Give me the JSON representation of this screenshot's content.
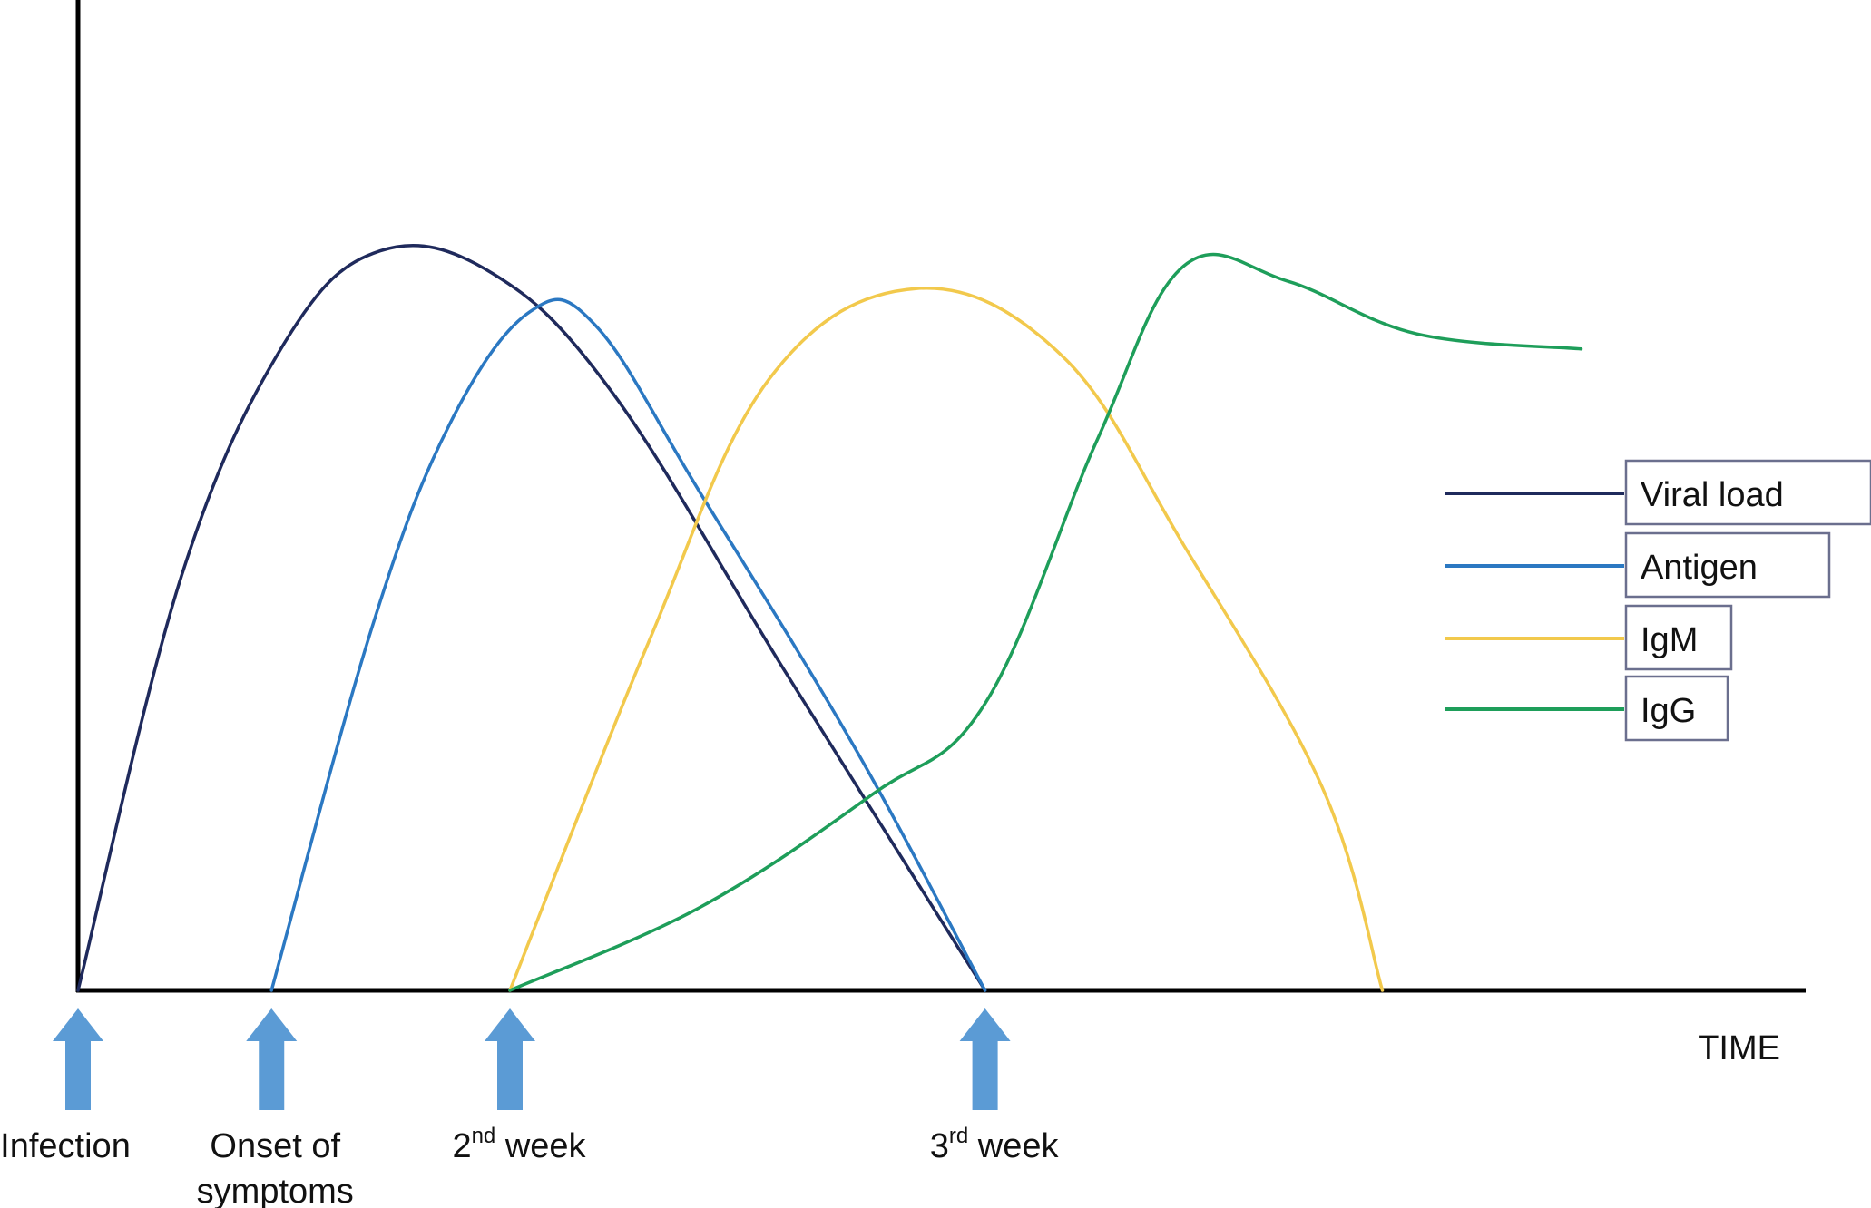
{
  "chart_data": {
    "type": "line",
    "xlabel": "TIME",
    "ylabel": "",
    "title": "",
    "xlim": [
      0,
      1
    ],
    "ylim": [
      0,
      1
    ],
    "grid": false,
    "legend_position": "right",
    "markers": [
      {
        "x": 0.0,
        "lines": [
          "Infection"
        ]
      },
      {
        "x": 0.112,
        "lines": [
          "Onset of",
          "symptoms"
        ]
      },
      {
        "x": 0.25,
        "lines": [
          "2nd week"
        ],
        "base": "2",
        "sup": "nd",
        "rest": " week"
      },
      {
        "x": 0.525,
        "lines": [
          "3rd week"
        ],
        "base": "3",
        "sup": "rd",
        "rest": " week"
      }
    ],
    "series": [
      {
        "name": "Viral load",
        "color": "#1f2a5c",
        "points": [
          [
            0.0,
            0.0
          ],
          [
            0.06,
            0.55
          ],
          [
            0.12,
            0.86
          ],
          [
            0.175,
            0.98
          ],
          [
            0.24,
            0.95
          ],
          [
            0.31,
            0.79
          ],
          [
            0.41,
            0.42
          ],
          [
            0.525,
            0.0
          ]
        ]
      },
      {
        "name": "Antigen",
        "color": "#2b78c2",
        "points": [
          [
            0.112,
            0.0
          ],
          [
            0.17,
            0.48
          ],
          [
            0.215,
            0.75
          ],
          [
            0.262,
            0.9
          ],
          [
            0.3,
            0.88
          ],
          [
            0.36,
            0.66
          ],
          [
            0.45,
            0.32
          ],
          [
            0.525,
            0.0
          ]
        ]
      },
      {
        "name": "IgM",
        "color": "#f2c94c",
        "points": [
          [
            0.25,
            0.0
          ],
          [
            0.33,
            0.46
          ],
          [
            0.4,
            0.81
          ],
          [
            0.485,
            0.93
          ],
          [
            0.57,
            0.84
          ],
          [
            0.64,
            0.59
          ],
          [
            0.72,
            0.27
          ],
          [
            0.755,
            0.0
          ]
        ]
      },
      {
        "name": "IgG",
        "color": "#1e9e5a",
        "points": [
          [
            0.25,
            0.0
          ],
          [
            0.36,
            0.11
          ],
          [
            0.46,
            0.26
          ],
          [
            0.525,
            0.38
          ],
          [
            0.59,
            0.73
          ],
          [
            0.64,
            0.96
          ],
          [
            0.7,
            0.94
          ],
          [
            0.775,
            0.87
          ],
          [
            0.87,
            0.85
          ]
        ]
      }
    ]
  }
}
